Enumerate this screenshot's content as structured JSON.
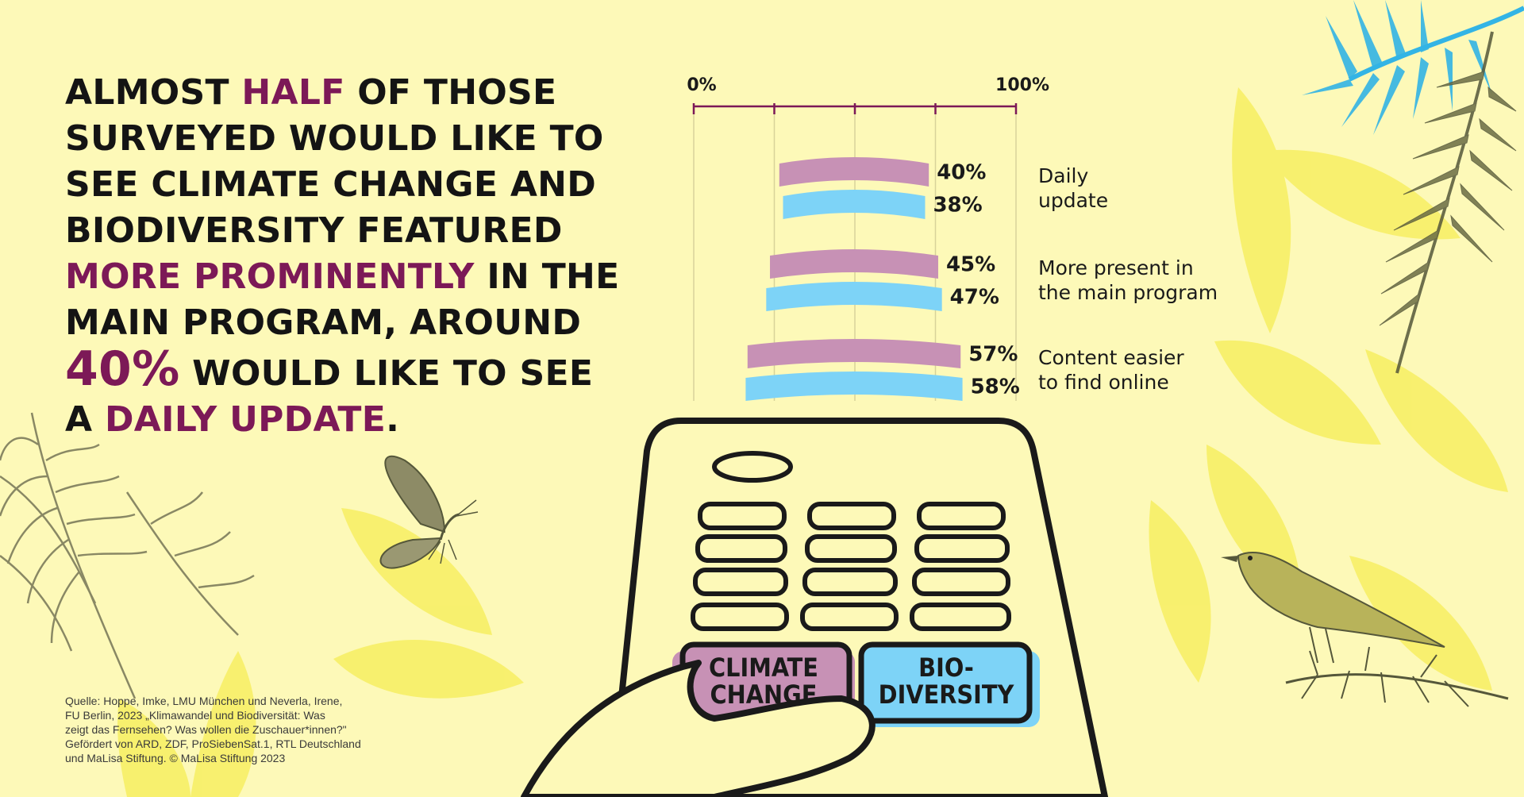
{
  "headline": {
    "segments": [
      {
        "text": "ALMOST ",
        "style": "plain"
      },
      {
        "text": "HALF",
        "style": "highlight"
      },
      {
        "text": " OF THOSE SURVEYED WOULD LIKE TO SEE CLIMATE CHANGE AND BIODIVERSITY FEATURED ",
        "style": "plain"
      },
      {
        "text": "MORE PROMINENTLY",
        "style": "highlight"
      },
      {
        "text": " IN THE MAIN PROGRAM, AROUND ",
        "style": "plain"
      },
      {
        "text": "40%",
        "style": "big"
      },
      {
        "text": " WOULD LIKE TO SEE A ",
        "style": "plain"
      },
      {
        "text": "DAILY UPDATE",
        "style": "highlight"
      },
      {
        "text": ".",
        "style": "plain"
      }
    ]
  },
  "chart_data": {
    "type": "bar",
    "orientation": "horizontal",
    "title": "",
    "xlabel": "",
    "ylabel": "",
    "xlim": [
      0,
      100
    ],
    "tick_labels": [
      "0%",
      "100%"
    ],
    "categories": [
      "Daily update",
      "More present in the main program",
      "Content easier to find online"
    ],
    "category_label_lines": [
      [
        "Daily",
        "update"
      ],
      [
        "More present in",
        "the main program"
      ],
      [
        "Content easier",
        "to find online"
      ]
    ],
    "series": [
      {
        "key": "climate",
        "color": "#c791b5",
        "values": [
          40,
          45,
          57
        ],
        "labels": [
          "40%",
          "45%",
          "57%"
        ]
      },
      {
        "key": "biodiversity",
        "color": "#7dd3f7",
        "values": [
          38,
          47,
          58
        ],
        "labels": [
          "38%",
          "47%",
          "58%"
        ]
      }
    ],
    "grid": true,
    "legend": "remote-buttons"
  },
  "remote": {
    "climate_button": [
      "CLIMATE",
      "CHANGE"
    ],
    "bio_button": [
      "BIO-",
      "DIVERSITY"
    ]
  },
  "source_text": "Quelle: Hoppe, Imke, LMU München und Neverla, Irene,\nFU Berlin, 2023 „Klimawandel und Biodiversität: Was\nzeigt das Fernsehen? Was wollen die Zuschauer*innen?\"\nGefördert von ARD, ZDF, ProSiebenSat.1, RTL Deutschland\nund MaLisa Stiftung. © MaLisa Stiftung 2023",
  "colors": {
    "background": "#fdf9b8",
    "accent": "#7c1957",
    "climate": "#c791b5",
    "biodiversity": "#7dd3f7",
    "foliage": "#f7ef62",
    "ink": "#1a1a1a"
  },
  "icons": [
    "palm-leaf-icon",
    "fern-icon",
    "butterfly-icon",
    "bird-icon",
    "tv-remote-icon"
  ]
}
